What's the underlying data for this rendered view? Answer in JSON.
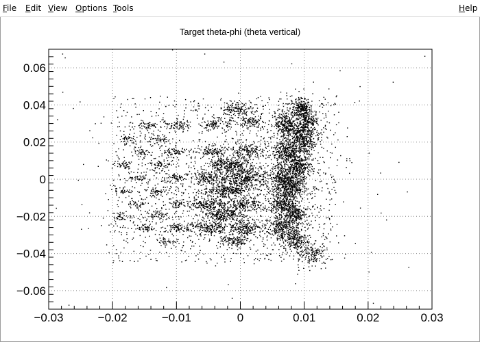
{
  "menu": {
    "file": {
      "accel": "F",
      "rest": "ile"
    },
    "edit": {
      "accel": "E",
      "rest": "dit"
    },
    "view": {
      "accel": "V",
      "rest": "iew"
    },
    "options": {
      "accel": "O",
      "rest": "ptions"
    },
    "tools": {
      "accel": "T",
      "rest": "ools"
    },
    "help": {
      "accel": "H",
      "rest": "elp"
    }
  },
  "chart_data": {
    "type": "scatter",
    "title": "Target theta-phi (theta vertical)",
    "xlabel": "",
    "ylabel": "",
    "xlim": [
      -0.03,
      0.03
    ],
    "ylim": [
      -0.07,
      0.07
    ],
    "grid": true,
    "x_ticks": [
      "−0.03",
      "−0.02",
      "−0.01",
      "0",
      "0.01",
      "0.02",
      "0.03"
    ],
    "y_ticks": [
      "−0.06",
      "−0.04",
      "−0.02",
      "0",
      "0.02",
      "0.04",
      "0.06"
    ],
    "x_tick_values": [
      -0.03,
      -0.02,
      -0.01,
      0,
      0.01,
      0.02,
      0.03
    ],
    "y_tick_values": [
      -0.06,
      -0.04,
      -0.02,
      0,
      0.02,
      0.04,
      0.06
    ],
    "clusters": [
      {
        "x": 0.0095,
        "y": 0.038,
        "sx": 0.0007,
        "sy": 0.0025,
        "n": 220
      },
      {
        "x": 0.0105,
        "y": 0.031,
        "sx": 0.0008,
        "sy": 0.0025,
        "n": 140
      },
      {
        "x": 0.0095,
        "y": 0.022,
        "sx": 0.0011,
        "sy": 0.0045,
        "n": 420
      },
      {
        "x": 0.009,
        "y": 0.007,
        "sx": 0.0009,
        "sy": 0.0035,
        "n": 280
      },
      {
        "x": 0.008,
        "y": -0.004,
        "sx": 0.0009,
        "sy": 0.0035,
        "n": 260
      },
      {
        "x": 0.0085,
        "y": -0.018,
        "sx": 0.0008,
        "sy": 0.003,
        "n": 200
      },
      {
        "x": 0.0085,
        "y": -0.032,
        "sx": 0.0008,
        "sy": 0.003,
        "n": 180
      },
      {
        "x": 0.011,
        "y": -0.04,
        "sx": 0.001,
        "sy": 0.003,
        "n": 120
      },
      {
        "x": 0.007,
        "y": 0.03,
        "sx": 0.0008,
        "sy": 0.003,
        "n": 220
      },
      {
        "x": 0.007,
        "y": 0.015,
        "sx": 0.0009,
        "sy": 0.0035,
        "n": 240
      },
      {
        "x": 0.0065,
        "y": 0.0,
        "sx": 0.0009,
        "sy": 0.0035,
        "n": 260
      },
      {
        "x": 0.0065,
        "y": -0.013,
        "sx": 0.0009,
        "sy": 0.0035,
        "n": 240
      },
      {
        "x": 0.0065,
        "y": -0.026,
        "sx": 0.0009,
        "sy": 0.003,
        "n": 220
      },
      {
        "x": -0.0005,
        "y": 0.038,
        "sx": 0.0012,
        "sy": 0.0018,
        "n": 120
      },
      {
        "x": 0.0015,
        "y": 0.031,
        "sx": 0.001,
        "sy": 0.0015,
        "n": 90
      },
      {
        "x": 0.001,
        "y": 0.015,
        "sx": 0.0012,
        "sy": 0.0018,
        "n": 140
      },
      {
        "x": -0.001,
        "y": 0.008,
        "sx": 0.0012,
        "sy": 0.0018,
        "n": 130
      },
      {
        "x": 0.0005,
        "y": 0.001,
        "sx": 0.002,
        "sy": 0.003,
        "n": 360
      },
      {
        "x": -0.0015,
        "y": -0.006,
        "sx": 0.0013,
        "sy": 0.0018,
        "n": 150
      },
      {
        "x": 0.0005,
        "y": -0.013,
        "sx": 0.0012,
        "sy": 0.0018,
        "n": 140
      },
      {
        "x": -0.002,
        "y": -0.019,
        "sx": 0.0012,
        "sy": 0.0018,
        "n": 120
      },
      {
        "x": 0.0005,
        "y": -0.026,
        "sx": 0.0013,
        "sy": 0.0018,
        "n": 160
      },
      {
        "x": -0.001,
        "y": -0.033,
        "sx": 0.0012,
        "sy": 0.0015,
        "n": 110
      },
      {
        "x": -0.004,
        "y": 0.03,
        "sx": 0.0012,
        "sy": 0.0015,
        "n": 90
      },
      {
        "x": -0.0045,
        "y": 0.015,
        "sx": 0.0012,
        "sy": 0.0015,
        "n": 100
      },
      {
        "x": -0.003,
        "y": 0.008,
        "sx": 0.0012,
        "sy": 0.0015,
        "n": 90
      },
      {
        "x": -0.0055,
        "y": 0.001,
        "sx": 0.0012,
        "sy": 0.0015,
        "n": 110
      },
      {
        "x": -0.004,
        "y": -0.006,
        "sx": 0.0012,
        "sy": 0.0015,
        "n": 90
      },
      {
        "x": -0.005,
        "y": -0.013,
        "sx": 0.0014,
        "sy": 0.0016,
        "n": 140
      },
      {
        "x": -0.0035,
        "y": -0.019,
        "sx": 0.0012,
        "sy": 0.0015,
        "n": 100
      },
      {
        "x": -0.005,
        "y": -0.026,
        "sx": 0.0016,
        "sy": 0.0018,
        "n": 180
      },
      {
        "x": -0.01,
        "y": 0.029,
        "sx": 0.0008,
        "sy": 0.0012,
        "n": 50
      },
      {
        "x": -0.013,
        "y": 0.022,
        "sx": 0.0008,
        "sy": 0.0012,
        "n": 45
      },
      {
        "x": -0.0105,
        "y": 0.015,
        "sx": 0.0008,
        "sy": 0.0012,
        "n": 50
      },
      {
        "x": -0.0125,
        "y": 0.008,
        "sx": 0.0008,
        "sy": 0.0012,
        "n": 45
      },
      {
        "x": -0.01,
        "y": 0.001,
        "sx": 0.0008,
        "sy": 0.0012,
        "n": 45
      },
      {
        "x": -0.013,
        "y": -0.006,
        "sx": 0.0008,
        "sy": 0.0012,
        "n": 50
      },
      {
        "x": -0.01,
        "y": -0.013,
        "sx": 0.0008,
        "sy": 0.0012,
        "n": 45
      },
      {
        "x": -0.013,
        "y": -0.019,
        "sx": 0.0008,
        "sy": 0.0012,
        "n": 45
      },
      {
        "x": -0.01,
        "y": -0.026,
        "sx": 0.0009,
        "sy": 0.0012,
        "n": 60
      },
      {
        "x": -0.012,
        "y": -0.033,
        "sx": 0.0007,
        "sy": 0.001,
        "n": 30
      },
      {
        "x": -0.0145,
        "y": 0.029,
        "sx": 0.0007,
        "sy": 0.0011,
        "n": 40
      },
      {
        "x": -0.018,
        "y": 0.022,
        "sx": 0.0007,
        "sy": 0.0011,
        "n": 35
      },
      {
        "x": -0.0155,
        "y": 0.015,
        "sx": 0.0007,
        "sy": 0.0011,
        "n": 35
      },
      {
        "x": -0.0185,
        "y": 0.008,
        "sx": 0.0007,
        "sy": 0.0011,
        "n": 40
      },
      {
        "x": -0.016,
        "y": 0.001,
        "sx": 0.0007,
        "sy": 0.0011,
        "n": 35
      },
      {
        "x": -0.0185,
        "y": -0.006,
        "sx": 0.0007,
        "sy": 0.0011,
        "n": 35
      },
      {
        "x": -0.016,
        "y": -0.013,
        "sx": 0.0007,
        "sy": 0.0011,
        "n": 35
      },
      {
        "x": -0.0185,
        "y": -0.02,
        "sx": 0.0007,
        "sy": 0.0011,
        "n": 35
      },
      {
        "x": -0.015,
        "y": -0.026,
        "sx": 0.0008,
        "sy": 0.0011,
        "n": 40
      }
    ],
    "background_points": 1100,
    "point_color": "#000000",
    "grid_color": "#808080",
    "frame_color": "#000000"
  }
}
